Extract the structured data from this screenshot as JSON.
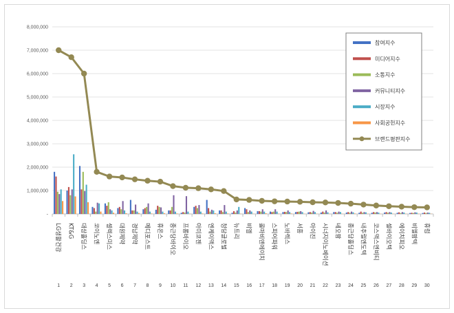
{
  "chart_data": {
    "type": "bar",
    "title": "",
    "xlabel": "",
    "ylabel": "",
    "ylim": [
      0,
      8000000
    ],
    "y_ticks": [
      "-",
      "1,000,000",
      "2,000,000",
      "3,000,000",
      "4,000,000",
      "5,000,000",
      "6,000,000",
      "7,000,000",
      "8,000,000"
    ],
    "grid": true,
    "legend_position": "top-right",
    "ranks": [
      "1",
      "2",
      "3",
      "4",
      "5",
      "6",
      "7",
      "8",
      "9",
      "10",
      "11",
      "12",
      "13",
      "14",
      "15",
      "16",
      "17",
      "18",
      "19",
      "20",
      "21",
      "22",
      "23",
      "24",
      "25",
      "26",
      "27",
      "28",
      "29",
      "30"
    ],
    "categories": [
      "LG생활건강",
      "KT&G",
      "대상홀딩스",
      "코이노엔",
      "셀렉스미스",
      "대원제약",
      "경남제약",
      "메디포스트",
      "휴온스",
      "종근당바이오",
      "프롬바이오",
      "아미코젠",
      "엔케이맥스",
      "청담글로벌",
      "뉴트리",
      "비엘",
      "콜마비앤에이치",
      "스피어파워",
      "노바렉스",
      "서흥",
      "아이진",
      "시너지이노베이션",
      "네오팜",
      "종근당홀딩스",
      "내추럴엔도텍",
      "코스맥스엔비티",
      "셀바이오텍",
      "에이치피오",
      "비엘팜텍",
      "휴럼"
    ],
    "series": [
      {
        "name": "참여지수",
        "color": "#4472c4",
        "values": [
          1800000,
          1000000,
          2050000,
          300000,
          450000,
          250000,
          600000,
          200000,
          180000,
          150000,
          50000,
          300000,
          600000,
          150000,
          50000,
          250000,
          120000,
          100000,
          80000,
          80000,
          70000,
          60000,
          80000,
          60000,
          50000,
          50000,
          60000,
          50000,
          40000,
          40000
        ]
      },
      {
        "name": "미디어지수",
        "color": "#c0504d",
        "values": [
          1600000,
          1150000,
          1050000,
          250000,
          350000,
          300000,
          150000,
          250000,
          350000,
          150000,
          80000,
          350000,
          250000,
          150000,
          120000,
          200000,
          120000,
          80000,
          90000,
          90000,
          80000,
          100000,
          80000,
          80000,
          100000,
          80000,
          80000,
          70000,
          50000,
          60000
        ]
      },
      {
        "name": "소통지수",
        "color": "#9bbb59",
        "values": [
          950000,
          800000,
          1800000,
          100000,
          500000,
          200000,
          150000,
          300000,
          300000,
          300000,
          60000,
          250000,
          100000,
          80000,
          60000,
          80000,
          100000,
          100000,
          80000,
          100000,
          60000,
          60000,
          50000,
          50000,
          50000,
          60000,
          50000,
          40000,
          40000,
          40000
        ]
      },
      {
        "name": "커뮤니티지수",
        "color": "#8064a2",
        "values": [
          850000,
          1050000,
          980000,
          480000,
          200000,
          550000,
          400000,
          450000,
          280000,
          800000,
          760000,
          380000,
          180000,
          380000,
          150000,
          150000,
          200000,
          200000,
          150000,
          120000,
          130000,
          150000,
          100000,
          100000,
          80000,
          80000,
          80000,
          80000,
          70000,
          60000
        ]
      },
      {
        "name": "시장지수",
        "color": "#4bacc6",
        "values": [
          1050000,
          2550000,
          1250000,
          450000,
          150000,
          150000,
          100000,
          100000,
          100000,
          100000,
          100000,
          100000,
          150000,
          100000,
          300000,
          100000,
          100000,
          100000,
          80000,
          80000,
          80000,
          70000,
          80000,
          70000,
          70000,
          60000,
          60000,
          60000,
          60000,
          50000
        ]
      },
      {
        "name": "사회공헌지수",
        "color": "#f79646",
        "values": [
          550000,
          750000,
          500000,
          100000,
          50000,
          30000,
          40000,
          20000,
          30000,
          20000,
          10000,
          20000,
          30000,
          20000,
          10000,
          10000,
          30000,
          10000,
          20000,
          10000,
          10000,
          10000,
          10000,
          20000,
          10000,
          10000,
          10000,
          10000,
          10000,
          10000
        ]
      }
    ],
    "line_series": {
      "name": "브랜드평판지수",
      "color": "#938953",
      "values": [
        7000000,
        6700000,
        6000000,
        1800000,
        1600000,
        1560000,
        1480000,
        1420000,
        1380000,
        1190000,
        1120000,
        1100000,
        1050000,
        980000,
        620000,
        600000,
        560000,
        540000,
        530000,
        520000,
        500000,
        490000,
        470000,
        440000,
        400000,
        360000,
        330000,
        310000,
        290000,
        280000
      ]
    }
  }
}
